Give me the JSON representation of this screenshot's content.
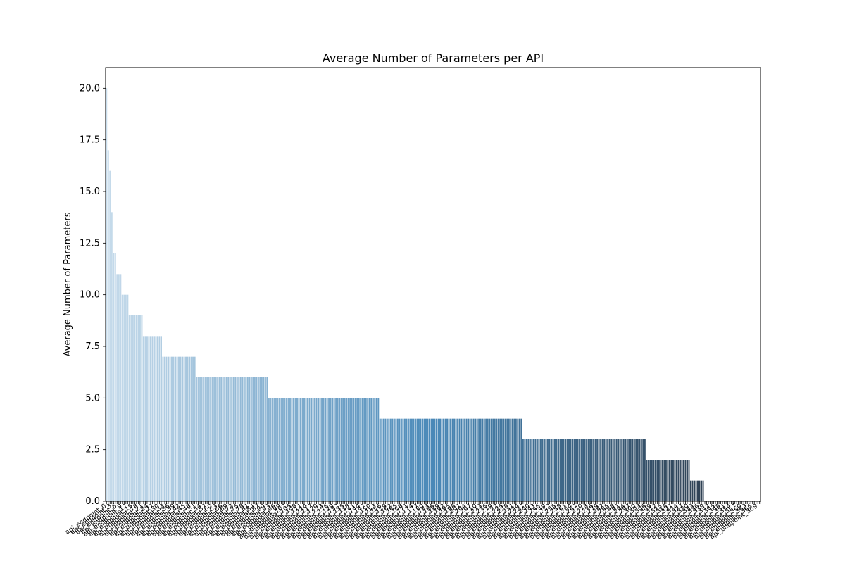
{
  "chart_data": {
    "type": "bar",
    "title": "Average Number of Parameters per API",
    "xlabel": "",
    "ylabel": "Average Number of Parameters",
    "ylim": [
      0,
      21
    ],
    "yticks": [
      0.0,
      2.5,
      5.0,
      7.5,
      10.0,
      12.5,
      15.0,
      17.5,
      20.0
    ],
    "ytick_labels": [
      "0.0",
      "2.5",
      "5.0",
      "7.5",
      "10.0",
      "12.5",
      "15.0",
      "17.5",
      "20.0"
    ],
    "grid": false,
    "legend": "none",
    "x_tick_labels": "dense overlapping rotated API-name labels (illegible)",
    "groups": [
      {
        "value": 20,
        "count": 1
      },
      {
        "value": 17,
        "count": 1
      },
      {
        "value": 16,
        "count": 1
      },
      {
        "value": 14,
        "count": 1
      },
      {
        "value": 12,
        "count": 2
      },
      {
        "value": 11,
        "count": 3
      },
      {
        "value": 10,
        "count": 4
      },
      {
        "value": 9,
        "count": 8
      },
      {
        "value": 8,
        "count": 11
      },
      {
        "value": 7,
        "count": 19
      },
      {
        "value": 6,
        "count": 41
      },
      {
        "value": 5,
        "count": 63
      },
      {
        "value": 4,
        "count": 81
      },
      {
        "value": 3,
        "count": 70
      },
      {
        "value": 2,
        "count": 25
      },
      {
        "value": 1,
        "count": 8
      },
      {
        "value": 0,
        "count": 32
      }
    ],
    "palette": {
      "start": "#c6dbeb",
      "mid": "#4a89b8",
      "end": "#2a3340"
    }
  }
}
